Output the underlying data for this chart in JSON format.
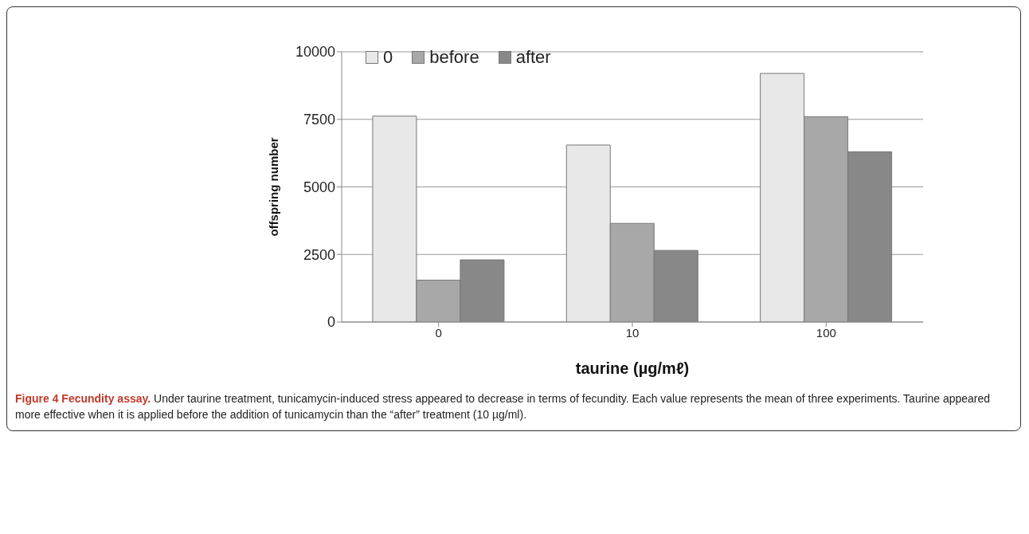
{
  "chart_data": {
    "type": "bar",
    "title": "Figure 4 Fecundity assay.",
    "xlabel": "taurine (µg/mℓ)",
    "ylabel": "offspring number",
    "categories": [
      "0",
      "10",
      "100"
    ],
    "series": [
      {
        "name": "0",
        "color": "#e8e8e8",
        "values": [
          7620,
          6550,
          9200
        ]
      },
      {
        "name": "before",
        "color": "#a8a8a8",
        "values": [
          1550,
          3650,
          7600
        ]
      },
      {
        "name": "after",
        "color": "#888888",
        "values": [
          2300,
          2650,
          6300
        ]
      }
    ],
    "ylim": [
      0,
      10000
    ],
    "yticks": [
      0,
      2500,
      5000,
      7500,
      10000
    ],
    "grid": "y",
    "legend": "top left",
    "annotations": [
      "Under taurine treatment, tunicamycin-induced stress appeared to decrease in terms of fecundity. Each value represents the mean of three experiments. Taurine appeared more effective when it is applied before the addition of tunicamycin than the “after” treatment (10 µg/ml)."
    ]
  }
}
